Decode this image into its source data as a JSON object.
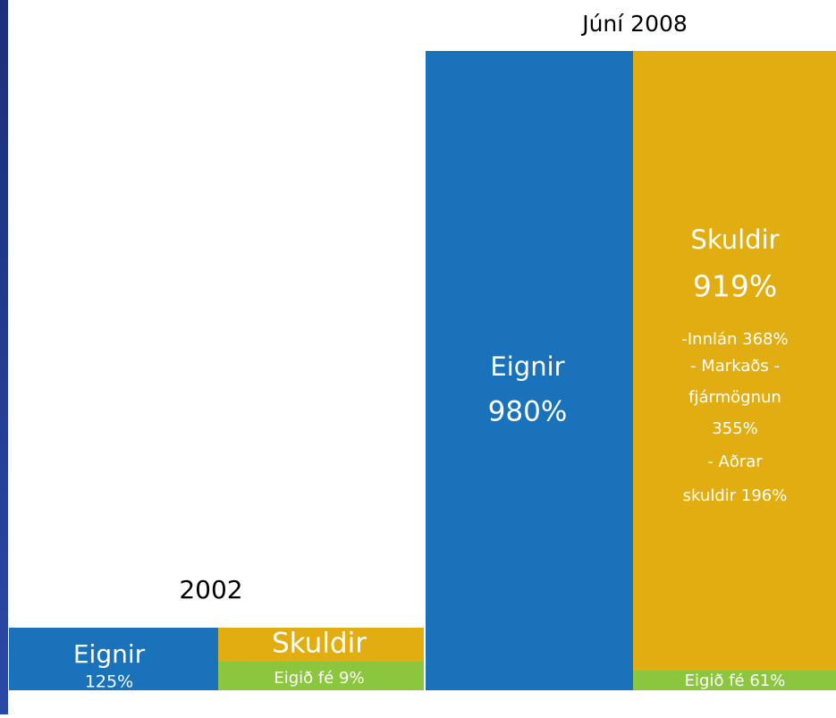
{
  "groups": [
    {
      "title": "2002",
      "assets": {
        "label": "Eignir",
        "value": "125%"
      },
      "liabilities": {
        "label": "Skuldir"
      },
      "equity": "Eigið fé 9%"
    },
    {
      "title": "Júní 2008",
      "assets": {
        "label": "Eignir",
        "value": "980%"
      },
      "liabilities": {
        "label": "Skuldir",
        "value": "919%",
        "details": [
          "-Innlán 368%",
          "- Markaðs  -",
          "fjármögnun",
          "355%",
          "- Aðrar",
          "skuldir 196%"
        ]
      },
      "equity": "Eigið fé 61%"
    }
  ]
}
